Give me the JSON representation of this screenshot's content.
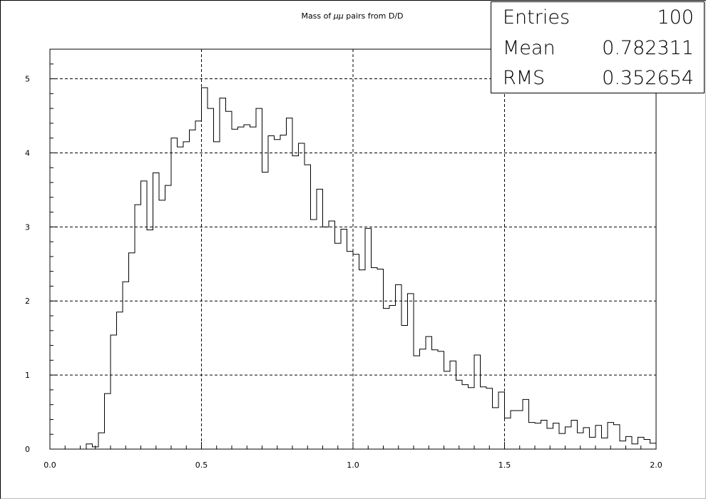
{
  "chart_data": {
    "type": "histogram",
    "title_prefix": "Mass of ",
    "title_symbol": "μμ",
    "title_suffix": " pairs from D/D",
    "xlim": [
      0.0,
      2.0
    ],
    "ylim": [
      0,
      5.4
    ],
    "grid": true,
    "x_ticks": [
      0.0,
      0.5,
      1.0,
      1.5,
      2.0
    ],
    "x_tick_labels": [
      "0.0",
      "0.5",
      "1.0",
      "1.5",
      "2.0"
    ],
    "y_ticks": [
      0,
      1,
      2,
      3,
      4,
      5
    ],
    "y_tick_labels": [
      "0",
      "1",
      "2",
      "3",
      "4",
      "5"
    ],
    "bin_width": 0.02,
    "bin_start": 0.0,
    "values": [
      0,
      0,
      0,
      0,
      0,
      0,
      0.07,
      0.03,
      0.22,
      0.75,
      1.54,
      1.85,
      2.26,
      2.65,
      3.3,
      3.62,
      2.96,
      3.73,
      3.36,
      3.56,
      4.2,
      4.08,
      4.15,
      4.31,
      4.43,
      4.88,
      4.6,
      4.15,
      4.74,
      4.56,
      4.32,
      4.35,
      4.38,
      4.35,
      4.6,
      3.74,
      4.23,
      4.18,
      4.24,
      4.47,
      3.96,
      4.13,
      3.84,
      3.1,
      3.51,
      3.0,
      3.08,
      2.78,
      2.97,
      2.67,
      2.63,
      2.42,
      2.98,
      2.45,
      2.43,
      1.9,
      1.94,
      2.22,
      1.67,
      2.1,
      1.26,
      1.35,
      1.52,
      1.34,
      1.32,
      1.05,
      1.19,
      0.93,
      0.87,
      0.83,
      1.27,
      0.84,
      0.82,
      0.56,
      0.77,
      0.42,
      0.52,
      0.52,
      0.67,
      0.36,
      0.35,
      0.39,
      0.28,
      0.35,
      0.21,
      0.3,
      0.39,
      0.22,
      0.29,
      0.16,
      0.32,
      0.15,
      0.36,
      0.33,
      0.11,
      0.17,
      0.07,
      0.16,
      0.13,
      0.08
    ],
    "stats": [
      {
        "label": "Entries",
        "value": "100"
      },
      {
        "label": "Mean",
        "value": "0.782311"
      },
      {
        "label": "RMS",
        "value": "0.352654"
      }
    ]
  }
}
